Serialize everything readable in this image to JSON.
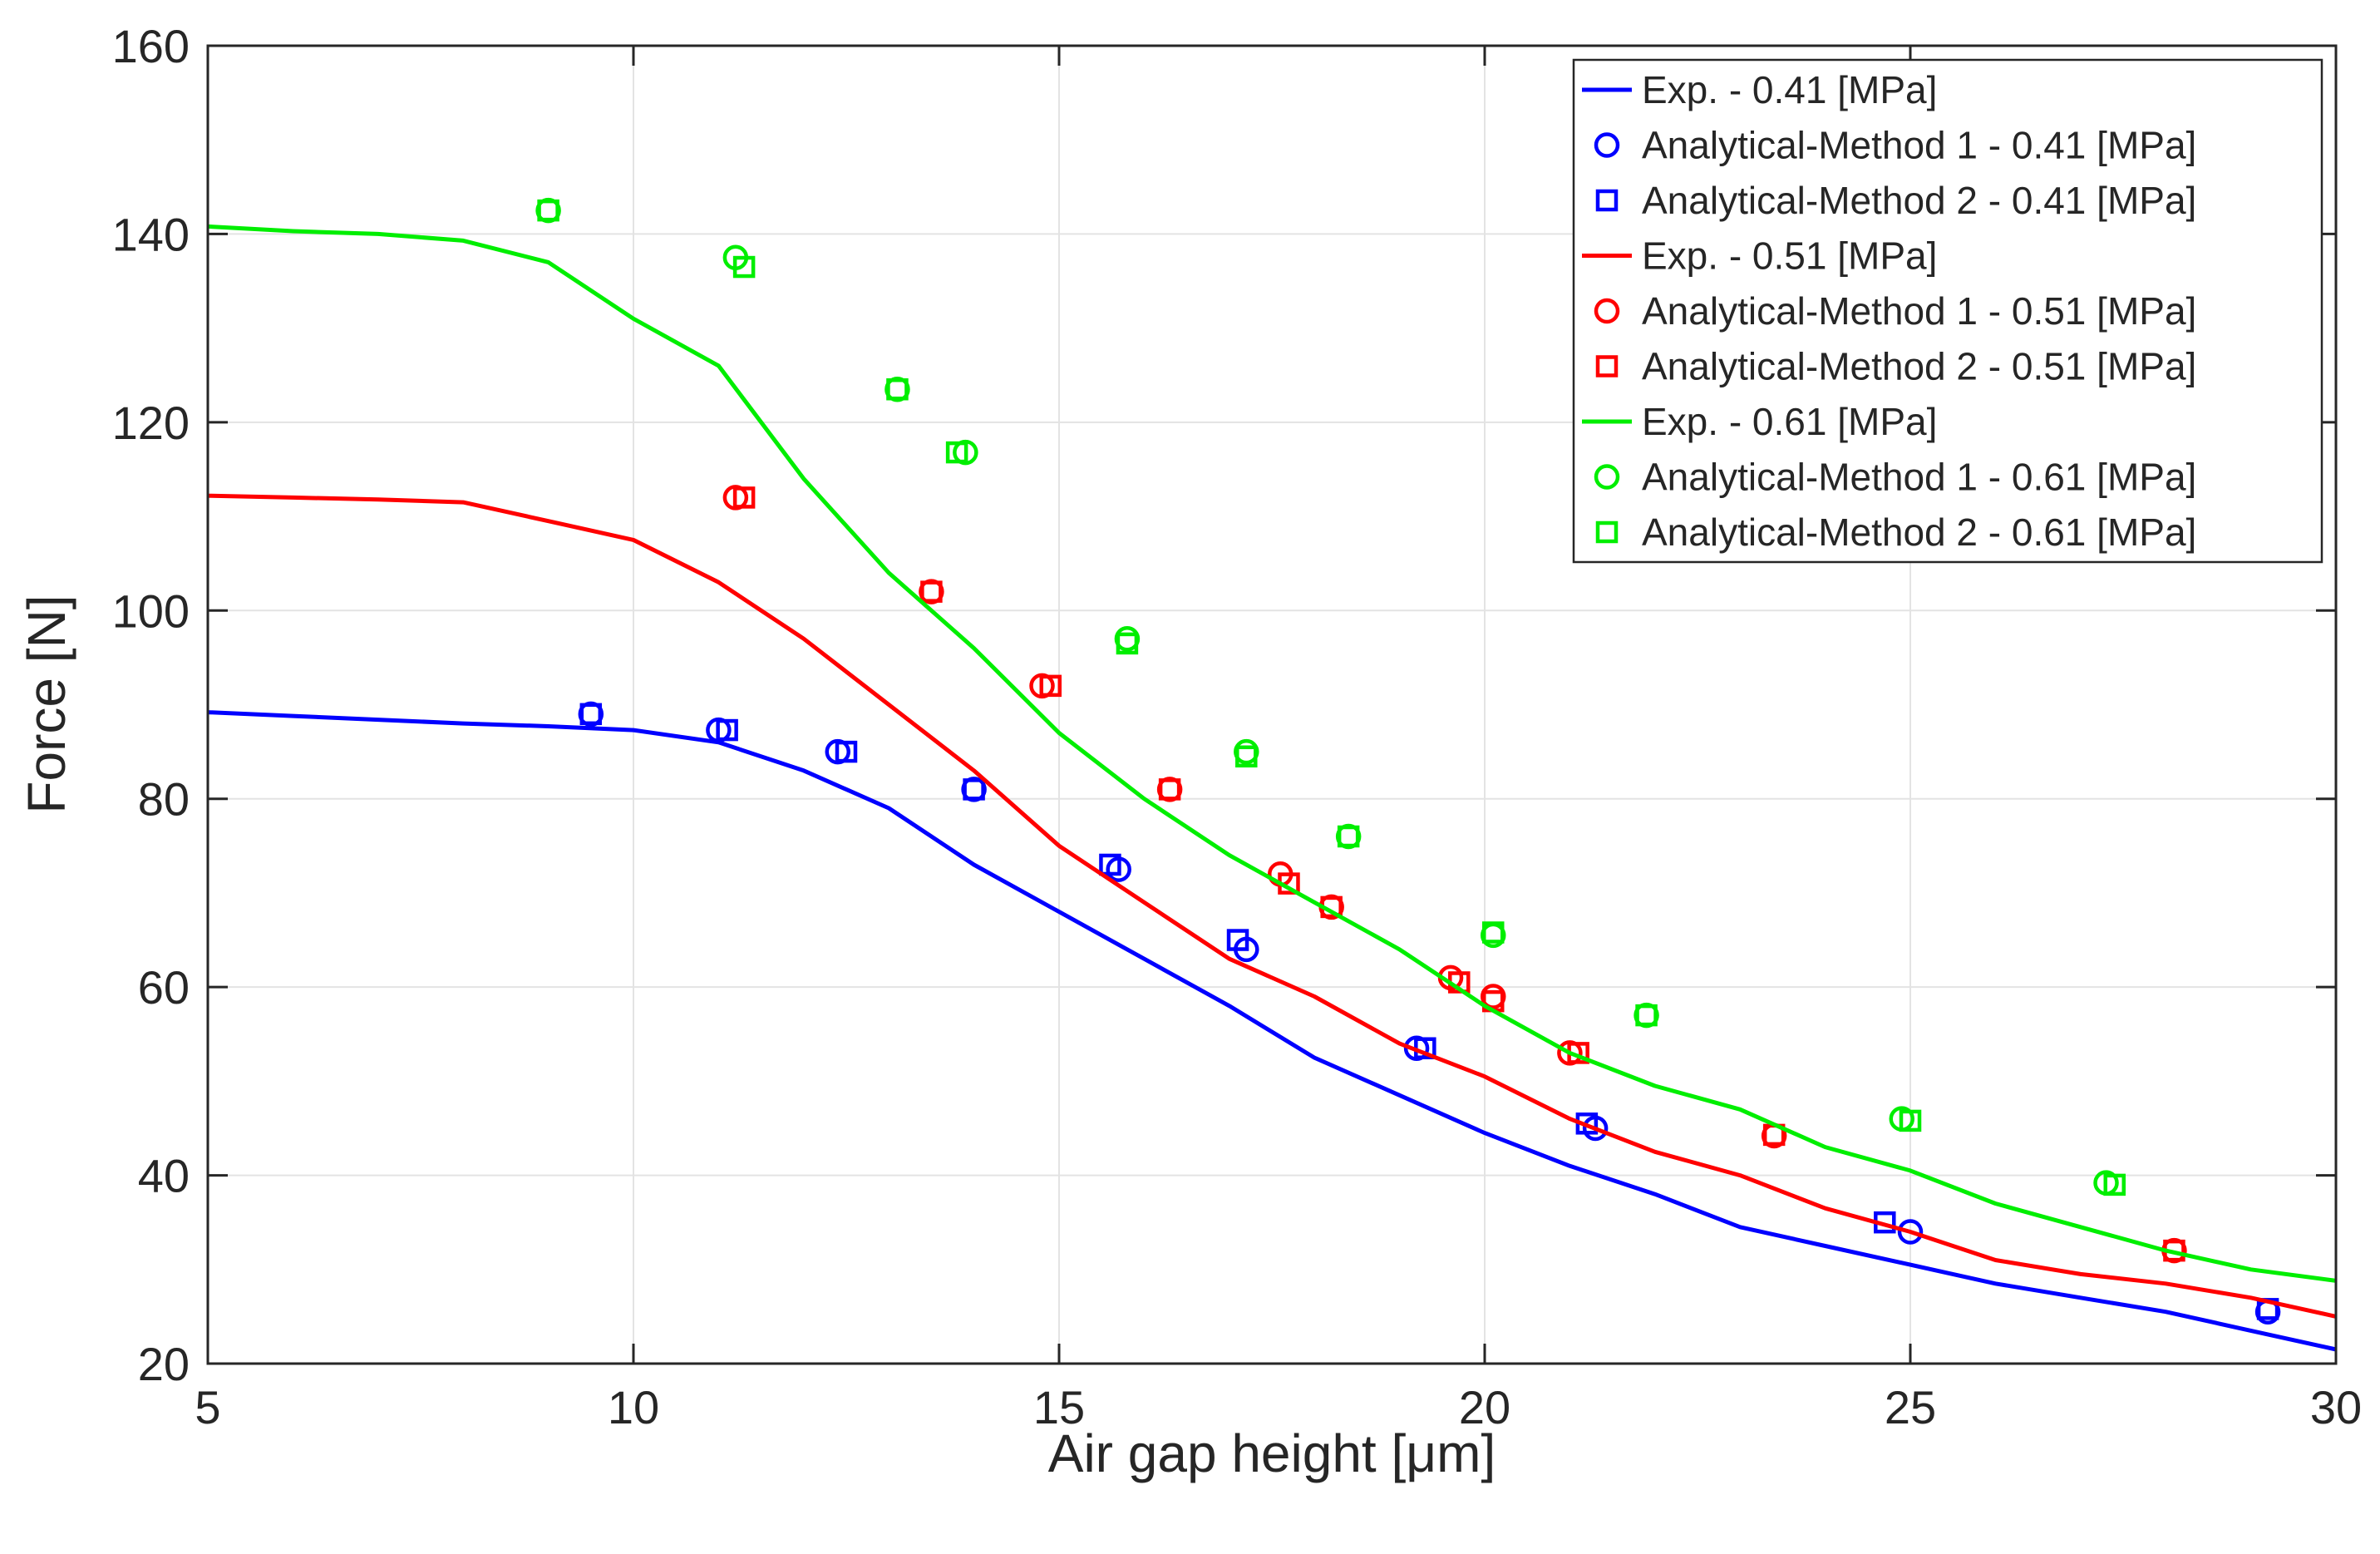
{
  "chart_data": {
    "type": "line",
    "title": "",
    "xlabel": "Air gap height [μm]",
    "ylabel": "Force [N]",
    "xlim": [
      5,
      30
    ],
    "ylim": [
      20,
      160
    ],
    "xticks": [
      5,
      10,
      15,
      20,
      25,
      30
    ],
    "yticks": [
      20,
      40,
      60,
      80,
      100,
      120,
      140,
      160
    ],
    "grid": true,
    "legend_position": "top-right",
    "series": [
      {
        "name": "Exp. - 0.41 [MPa]",
        "kind": "line",
        "color": "#0000ff",
        "x": [
          5,
          6,
          7,
          8,
          9,
          10,
          11,
          12,
          13,
          14,
          15,
          16,
          17,
          18,
          19,
          20,
          21,
          22,
          23,
          24,
          25,
          26,
          27,
          28,
          29,
          30
        ],
        "y": [
          89.2,
          88.8,
          88.4,
          88.0,
          87.7,
          87.3,
          86.0,
          83.0,
          79.0,
          73.0,
          68.0,
          63.0,
          58.0,
          52.5,
          48.5,
          44.5,
          41.0,
          38.0,
          34.5,
          32.5,
          30.5,
          28.5,
          27.0,
          25.5,
          23.5,
          21.5
        ]
      },
      {
        "name": "Analytical-Method 1 - 0.41 [MPa]",
        "kind": "circle",
        "color": "#0000ff",
        "x": [
          9.5,
          11.0,
          12.4,
          14.0,
          15.7,
          17.2,
          19.2,
          21.3,
          25.0,
          29.2
        ],
        "y": [
          89.0,
          87.3,
          85.0,
          81.0,
          72.5,
          64.0,
          53.5,
          45.0,
          34.0,
          25.5
        ]
      },
      {
        "name": "Analytical-Method 2 - 0.41 [MPa]",
        "kind": "square",
        "color": "#0000ff",
        "x": [
          9.5,
          11.1,
          12.5,
          14.0,
          15.6,
          17.1,
          19.3,
          21.2,
          24.7,
          29.2
        ],
        "y": [
          89.0,
          87.3,
          85.0,
          81.0,
          73.0,
          65.0,
          53.5,
          45.5,
          35.0,
          25.8
        ]
      },
      {
        "name": "Exp. - 0.51 [MPa]",
        "kind": "line",
        "color": "#ff0000",
        "x": [
          5,
          6,
          7,
          8,
          9,
          10,
          11,
          12,
          13,
          14,
          15,
          16,
          17,
          18,
          19,
          20,
          21,
          22,
          23,
          24,
          25,
          26,
          27,
          28,
          29,
          30
        ],
        "y": [
          112.2,
          112.0,
          111.8,
          111.5,
          109.5,
          107.5,
          103.0,
          97.0,
          90.0,
          83.0,
          75.0,
          69.0,
          63.0,
          59.0,
          54.0,
          50.5,
          46.0,
          42.5,
          40.0,
          36.5,
          34.0,
          31.0,
          29.5,
          28.5,
          27.0,
          25.0
        ]
      },
      {
        "name": "Analytical-Method 1 - 0.51 [MPa]",
        "kind": "circle",
        "color": "#ff0000",
        "x": [
          11.2,
          13.5,
          14.8,
          16.3,
          17.6,
          18.2,
          19.6,
          20.1,
          21.0,
          23.4,
          28.1
        ],
        "y": [
          112.0,
          102.0,
          92.0,
          81.0,
          72.0,
          68.5,
          61.0,
          59.0,
          53.0,
          44.2,
          32.0
        ]
      },
      {
        "name": "Analytical-Method 2 - 0.51 [MPa]",
        "kind": "square",
        "color": "#ff0000",
        "x": [
          11.3,
          13.5,
          14.9,
          16.3,
          17.7,
          18.2,
          19.7,
          20.1,
          21.1,
          23.4,
          28.1
        ],
        "y": [
          112.0,
          102.0,
          92.0,
          81.0,
          71.0,
          68.5,
          60.5,
          58.5,
          53.0,
          44.3,
          32.0
        ]
      },
      {
        "name": "Exp. - 0.61 [MPa]",
        "kind": "line",
        "color": "#00ee00",
        "x": [
          5,
          6,
          7,
          8,
          9,
          10,
          11,
          12,
          13,
          14,
          15,
          16,
          17,
          18,
          19,
          20,
          21,
          22,
          23,
          24,
          25,
          26,
          27,
          28,
          29,
          30
        ],
        "y": [
          140.8,
          140.3,
          140.0,
          139.3,
          137.0,
          131.0,
          126.0,
          114.0,
          104.0,
          96.0,
          87.0,
          80.0,
          74.0,
          69.0,
          64.0,
          58.0,
          53.0,
          49.5,
          47.0,
          43.0,
          40.5,
          37.0,
          34.5,
          32.0,
          30.0,
          28.8
        ]
      },
      {
        "name": "Analytical-Method 1 - 0.61 [MPa]",
        "kind": "circle",
        "color": "#00ee00",
        "x": [
          9.0,
          11.2,
          13.1,
          13.9,
          15.8,
          17.2,
          18.4,
          20.1,
          21.9,
          24.9,
          27.3
        ],
        "y": [
          142.5,
          137.5,
          123.5,
          116.8,
          97.0,
          85.0,
          76.0,
          65.5,
          57.0,
          46.0,
          39.2
        ]
      },
      {
        "name": "Analytical-Method 2 - 0.61 [MPa]",
        "kind": "square",
        "color": "#00ee00",
        "x": [
          9.0,
          11.3,
          13.1,
          13.8,
          15.8,
          17.2,
          18.4,
          20.1,
          21.9,
          25.0,
          27.4
        ],
        "y": [
          142.5,
          136.5,
          123.5,
          116.8,
          96.5,
          84.5,
          76.0,
          65.8,
          57.0,
          45.8,
          39.0
        ]
      }
    ]
  }
}
